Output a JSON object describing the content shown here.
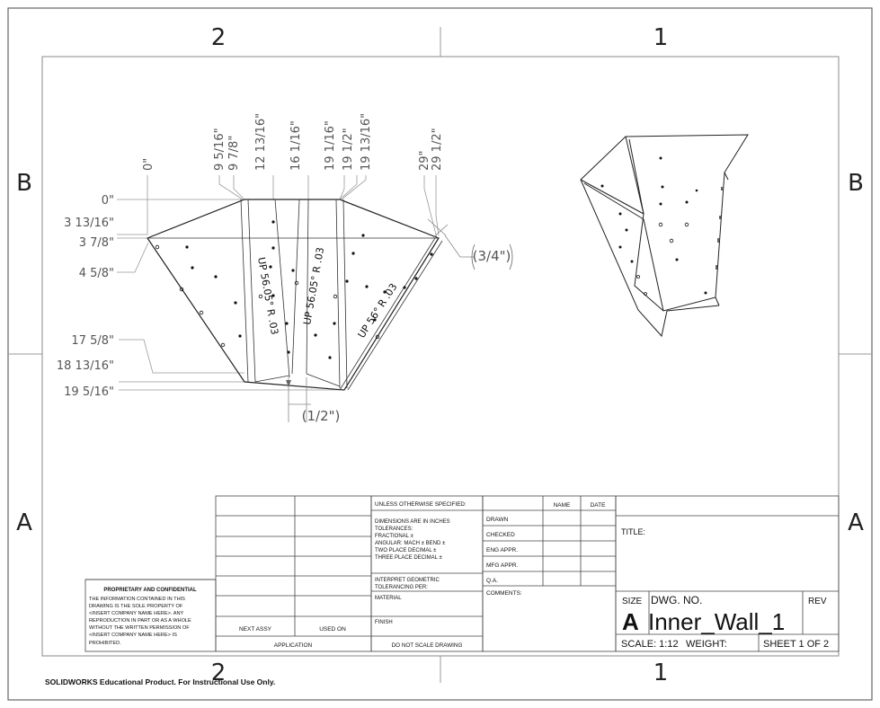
{
  "sheet": {
    "zones_top": [
      "2",
      "1"
    ],
    "zones_bottom": [
      "2",
      "1"
    ],
    "zones_left": [
      "B",
      "A"
    ],
    "zones_right": [
      "B",
      "A"
    ]
  },
  "drawing": {
    "horiz_dims": [
      "0\"",
      "9 5/16\"",
      "9 7/8\"",
      "12 13/16\"",
      "16 1/16\"",
      "19 1/16\"",
      "19 1/2\"",
      "19 13/16\"",
      "29\"",
      "29 1/2\""
    ],
    "vert_dims": [
      "0\"",
      "3 13/16\"",
      "3 7/8\"",
      "4 5/8\"",
      "17 5/8\"",
      "18 13/16\"",
      "19 5/16\""
    ],
    "bend_notes": [
      "UP 56.05° R .03",
      "UP 56.05° R .03",
      "UP 56° R .03"
    ],
    "ref_dims": [
      "(3/4\")",
      "(1/2\")"
    ]
  },
  "title_block": {
    "proprietary_title": "PROPRIETARY AND CONFIDENTIAL",
    "proprietary_text": [
      "THE INFORMATION CONTAINED IN THIS",
      "DRAWING IS THE SOLE PROPERTY OF",
      "<INSERT COMPANY NAME HERE>.  ANY",
      "REPRODUCTION IN PART OR AS A WHOLE",
      "WITHOUT THE WRITTEN PERMISSION OF",
      "<INSERT COMPANY NAME HERE> IS",
      "PROHIBITED."
    ],
    "next_assy": "NEXT ASSY",
    "used_on": "USED ON",
    "application": "APPLICATION",
    "unless": "UNLESS OTHERWISE SPECIFIED:",
    "dims_lines": [
      "DIMENSIONS ARE IN INCHES",
      "TOLERANCES:",
      "FRACTIONAL ±",
      "ANGULAR: MACH ±   BEND ±",
      "TWO PLACE DECIMAL    ±",
      "THREE PLACE DECIMAL  ±"
    ],
    "interpret": [
      "INTERPRET GEOMETRIC",
      "TOLERANCING PER:"
    ],
    "material": "MATERIAL",
    "finish": "FINISH",
    "do_not_scale": "DO NOT SCALE DRAWING",
    "name": "NAME",
    "date": "DATE",
    "drawn": "DRAWN",
    "checked": "CHECKED",
    "eng_appr": "ENG APPR.",
    "mfg_appr": "MFG APPR.",
    "qa": "Q.A.",
    "comments": "COMMENTS:",
    "title_label": "TITLE:",
    "size_label": "SIZE",
    "dwg_no_label": "DWG.  NO.",
    "rev_label": "REV",
    "size_value": "A",
    "dwg_no": "Inner_Wall_1",
    "scale": "SCALE: 1:12",
    "weight": "WEIGHT:",
    "sheet": "SHEET 1 OF 2"
  },
  "footer": "SOLIDWORKS Educational Product. For Instructional Use Only."
}
